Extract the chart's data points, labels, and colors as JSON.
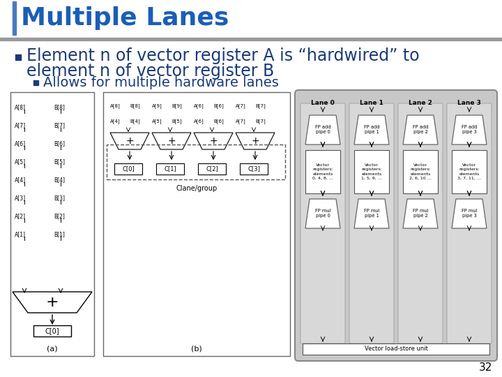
{
  "title": "Multiple Lanes",
  "title_color": "#1a5eb8",
  "title_fontsize": 26,
  "bg_color": "#ffffff",
  "bullet1_line1": "Element n of vector register A is “hardwired” to",
  "bullet1_line2": "element n of vector register B",
  "bullet1_color": "#1a3a7a",
  "bullet1_fontsize": 17,
  "bullet2": "Allows for multiple hardware lanes",
  "bullet2_color": "#1a3a7a",
  "bullet2_fontsize": 14,
  "page_number": "32",
  "lane_labels": [
    "Lane 0",
    "Lane 1",
    "Lane 2",
    "Lane 3"
  ],
  "fp_add_labels": [
    "FP add\npipe 0",
    "FP add\npipe 1",
    "FP add\npipe 2",
    "FP add\npipe 3"
  ],
  "vector_reg_labels": [
    "Vector\nregisters:\nelements\n0, 4, 8, …",
    "Vector\nregisters:\nelements\n1, 5, 9, …",
    "Vector\nregisters:\nelements\n2, 6, 10 …",
    "Vector\nregisters:\nelements\n3, 7, 11, …"
  ],
  "fp_mul_labels": [
    "FP mul\npipe 0",
    "FP mul\npipe 1",
    "FP mul\npipe 2",
    "FP mul\npipe 3"
  ],
  "vls_label": "Vector load-store unit",
  "left_a_labels": [
    "A[8]",
    "A[7]",
    "A[6]",
    "A[5]",
    "A[4]",
    "A[3]",
    "A[2]",
    "A[1]"
  ],
  "left_b_labels": [
    "B[8]",
    "B[7]",
    "B[6]",
    "B[5]",
    "B[4]",
    "B[3]",
    "B[2]",
    "B[1]"
  ],
  "b_top_row": [
    [
      "A[8]",
      "B[8]",
      "A[9]",
      "B[9]",
      "A[6]",
      "B[6]",
      "A[7]",
      "B[7]"
    ],
    [
      "A[4]",
      "B[4]",
      "A[5]",
      "B[5]",
      "A[6]",
      "B[6]",
      "A[7]",
      "B[7]"
    ]
  ],
  "clane_labels": [
    "C[0]",
    "C[1]",
    "C[2]",
    "C[3]"
  ],
  "cluster_label": "Clane/group",
  "adder_label_a": "(a)",
  "adder_label_b": "(b)"
}
